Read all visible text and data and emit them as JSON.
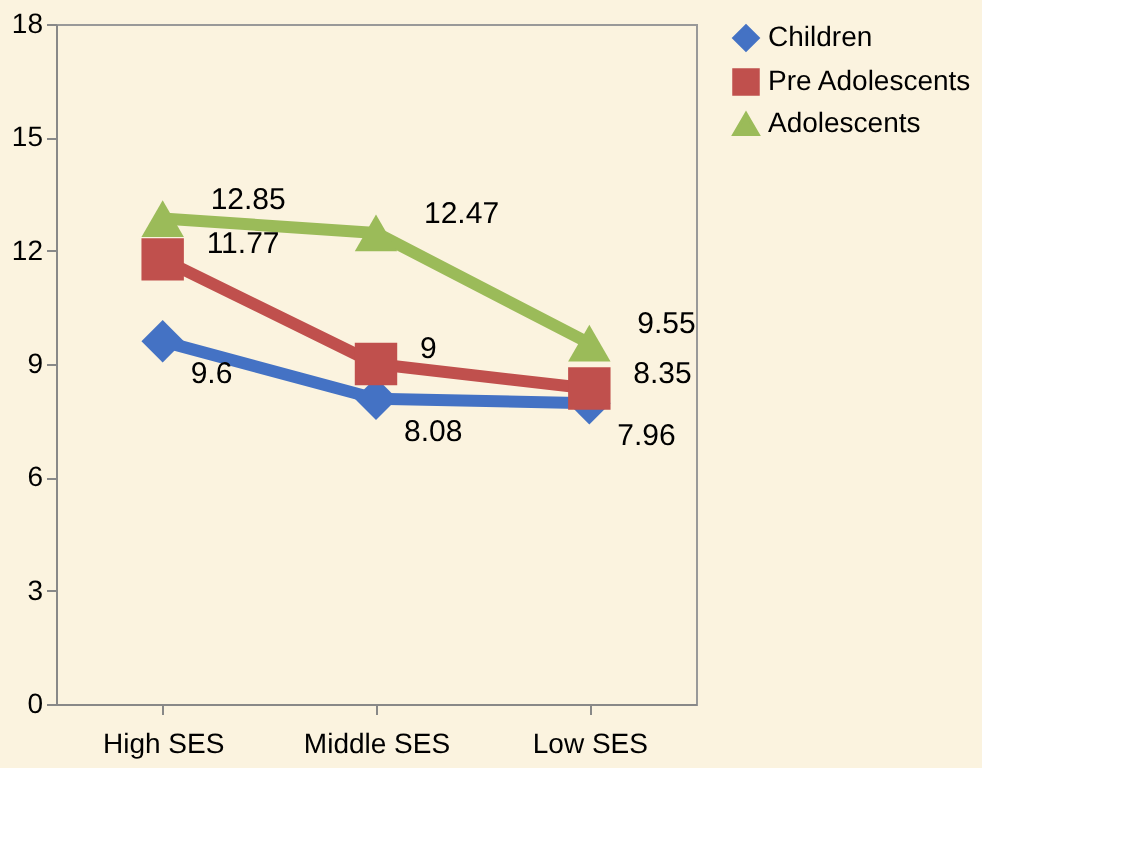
{
  "chart_data": {
    "type": "line",
    "categories": [
      "High SES",
      "Middle SES",
      "Low SES"
    ],
    "series": [
      {
        "name": "Children",
        "color": "#4472c4",
        "marker": "diamond",
        "values": [
          9.6,
          8.08,
          7.96
        ]
      },
      {
        "name": "Pre Adolescents",
        "color": "#c0504d",
        "marker": "square",
        "values": [
          11.77,
          9,
          8.35
        ]
      },
      {
        "name": "Adolescents",
        "color": "#9bbb59",
        "marker": "triangle",
        "values": [
          12.85,
          12.47,
          9.55
        ]
      }
    ],
    "ylim": [
      0,
      18
    ],
    "yticks": [
      0,
      3,
      6,
      9,
      12,
      15,
      18
    ],
    "grid": false,
    "legend": "top right",
    "data_labels": true
  }
}
